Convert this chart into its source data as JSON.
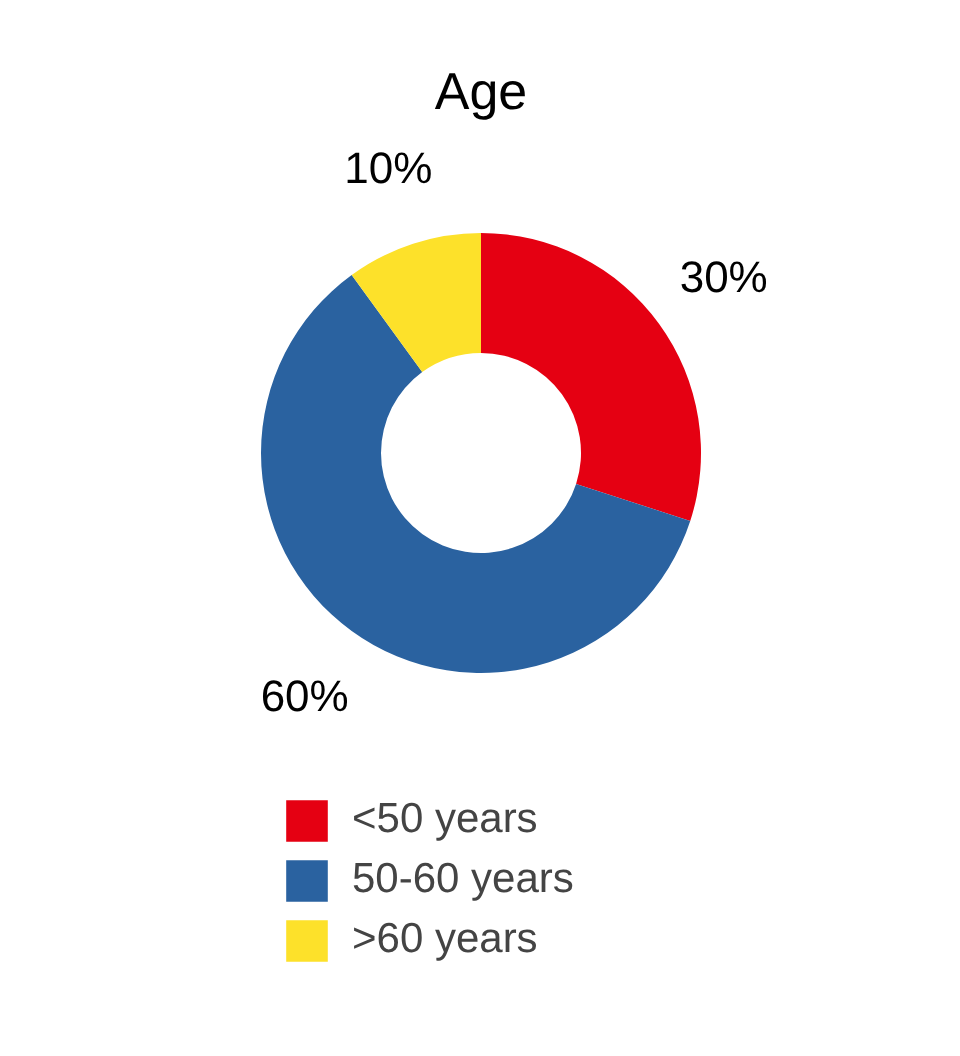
{
  "chart_data": {
    "type": "donut",
    "title": "Age",
    "categories": [
      "<50 years",
      "50-60 years",
      ">60 years"
    ],
    "values": [
      30,
      60,
      10
    ],
    "colors": [
      "#e50012",
      "#2a62a0",
      "#fde12a"
    ],
    "value_labels": [
      "30%",
      "60%",
      "10%"
    ],
    "legend": "bottom"
  }
}
